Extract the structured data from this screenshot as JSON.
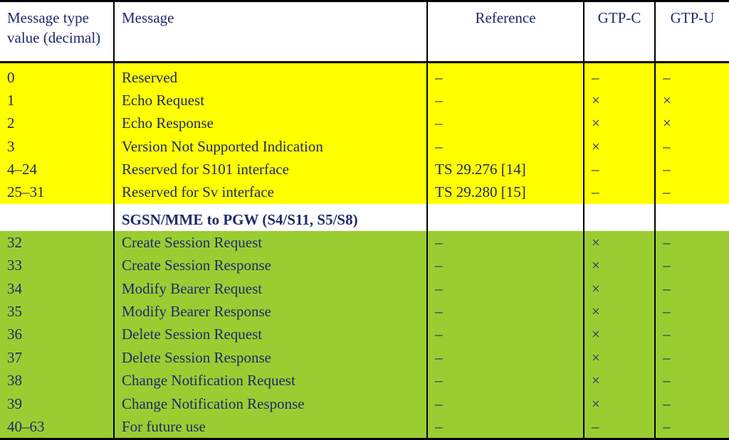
{
  "colors": {
    "text": "#1e2a6a",
    "border": "#000000",
    "bg_group1": "#ffff00",
    "bg_group2": "#9acd32",
    "bg_plain": "#ffffff"
  },
  "symbols": {
    "dash": "–",
    "cross": "×"
  },
  "columns": {
    "value": "Message type value (decimal)",
    "message": "Message",
    "reference": "Reference",
    "gtp_c": "GTP-C",
    "gtp_u": "GTP-U"
  },
  "groups": [
    {
      "bg": "#ffff00",
      "rows": [
        {
          "value": "0",
          "message": "Reserved",
          "reference": "–",
          "gtp_c": "–",
          "gtp_u": "–"
        },
        {
          "value": "1",
          "message": "Echo Request",
          "reference": "–",
          "gtp_c": "×",
          "gtp_u": "×"
        },
        {
          "value": "2",
          "message": "Echo Response",
          "reference": "–",
          "gtp_c": "×",
          "gtp_u": "×"
        },
        {
          "value": "3",
          "message": "Version Not Supported Indication",
          "reference": "–",
          "gtp_c": "×",
          "gtp_u": "–"
        },
        {
          "value": "4–24",
          "message": "Reserved for S101 interface",
          "reference": "TS 29.276 [14]",
          "gtp_c": "–",
          "gtp_u": "–"
        },
        {
          "value": "25–31",
          "message": "Reserved for Sv interface",
          "reference": "TS 29.280 [15]",
          "gtp_c": "–",
          "gtp_u": "–"
        }
      ]
    },
    {
      "section_header": "SGSN/MME to PGW (S4/S11, S5/S8)",
      "bg": "#9acd32",
      "rows": [
        {
          "value": "32",
          "message": "Create Session Request",
          "reference": "–",
          "gtp_c": "×",
          "gtp_u": "–"
        },
        {
          "value": "33",
          "message": "Create Session Response",
          "reference": "–",
          "gtp_c": "×",
          "gtp_u": "–"
        },
        {
          "value": "34",
          "message": "Modify Bearer Request",
          "reference": "–",
          "gtp_c": "×",
          "gtp_u": "–"
        },
        {
          "value": "35",
          "message": "Modify Bearer Response",
          "reference": "–",
          "gtp_c": "×",
          "gtp_u": "–"
        },
        {
          "value": "36",
          "message": "Delete Session Request",
          "reference": "–",
          "gtp_c": "×",
          "gtp_u": "–"
        },
        {
          "value": "37",
          "message": "Delete Session Response",
          "reference": "–",
          "gtp_c": "×",
          "gtp_u": "–"
        },
        {
          "value": "38",
          "message": "Change Notification Request",
          "reference": "–",
          "gtp_c": "×",
          "gtp_u": "–"
        },
        {
          "value": "39",
          "message": "Change Notification Response",
          "reference": "–",
          "gtp_c": "×",
          "gtp_u": "–"
        },
        {
          "value": "40–63",
          "message": "For future use",
          "reference": "–",
          "gtp_c": "–",
          "gtp_u": "–"
        }
      ]
    }
  ]
}
